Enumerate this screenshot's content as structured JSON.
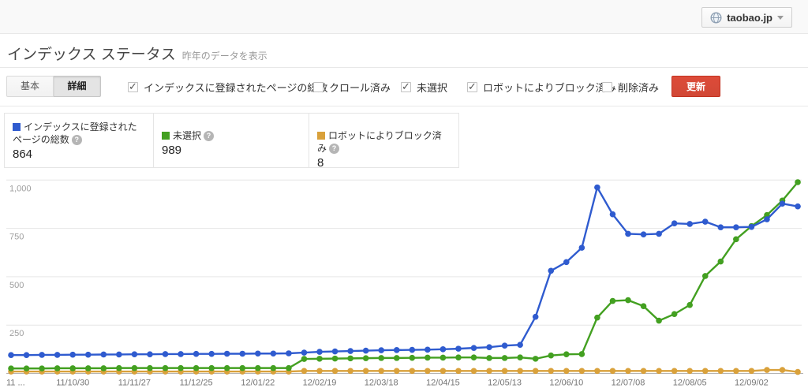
{
  "topbar": {
    "site_selector": {
      "label": "taobao.jp"
    }
  },
  "header": {
    "title": "インデックス ステータス",
    "subtitle": "昨年のデータを表示"
  },
  "toolbar": {
    "tabs": [
      {
        "label": "基本",
        "selected": false
      },
      {
        "label": "詳細",
        "selected": true
      }
    ],
    "filters": [
      {
        "label": "インデックスに登録されたページの総数",
        "checked": true
      },
      {
        "label": "クロール済み",
        "checked": false
      },
      {
        "label": "未選択",
        "checked": true
      },
      {
        "label": "ロボットによりブロック済み",
        "checked": true
      },
      {
        "label": "削除済み",
        "checked": false
      }
    ],
    "update_button": "更新"
  },
  "legend_cards": [
    {
      "label": "インデックスに登録されたページの総数",
      "value": "864",
      "color": "#2f5bcf"
    },
    {
      "label": "未選択",
      "value": "989",
      "color": "#43a021"
    },
    {
      "label": "ロボットによりブロック済み",
      "value": "8",
      "color": "#d9a13b"
    }
  ],
  "chart_data": {
    "type": "line",
    "title": "インデックス ステータス",
    "x_tick_labels": [
      "11 ...",
      "11/10/30",
      "11/11/27",
      "11/12/25",
      "12/01/22",
      "12/02/19",
      "12/03/18",
      "12/04/15",
      "12/05/13",
      "12/06/10",
      "12/07/08",
      "12/08/05",
      "12/09/02"
    ],
    "y_tick_labels": [
      "1,000",
      "750",
      "500",
      "250"
    ],
    "y_tick_values": [
      1000,
      750,
      500,
      250
    ],
    "ylim": [
      0,
      1020
    ],
    "grid": true,
    "points_per_tick": 4,
    "series": [
      {
        "name": "インデックスに登録されたページの総数",
        "color": "#2f5bcf",
        "values": [
          95,
          95,
          96,
          96,
          97,
          97,
          98,
          98,
          99,
          99,
          100,
          100,
          101,
          101,
          102,
          102,
          103,
          103,
          104,
          108,
          112,
          114,
          116,
          118,
          120,
          121,
          122,
          123,
          125,
          128,
          132,
          136,
          144,
          148,
          293,
          531,
          576,
          650,
          962,
          823,
          722,
          719,
          722,
          776,
          773,
          785,
          756,
          756,
          758,
          797,
          878,
          864
        ]
      },
      {
        "name": "未選択",
        "color": "#43a021",
        "values": [
          26,
          26,
          26,
          27,
          27,
          27,
          27,
          28,
          28,
          28,
          28,
          28,
          28,
          28,
          28,
          28,
          28,
          28,
          28,
          75,
          76,
          77,
          78,
          79,
          80,
          80,
          81,
          82,
          82,
          83,
          83,
          80,
          80,
          83,
          76,
          93,
          99,
          100,
          289,
          375,
          379,
          348,
          273,
          307,
          354,
          504,
          579,
          694,
          762,
          819,
          894,
          989
        ]
      },
      {
        "name": "ロボットによりブロック済み",
        "color": "#d9a13b",
        "values": [
          10,
          10,
          10,
          10,
          10,
          10,
          10,
          10,
          10,
          10,
          10,
          10,
          10,
          10,
          10,
          10,
          10,
          10,
          10,
          13,
          13,
          13,
          13,
          13,
          13,
          13,
          13,
          13,
          13,
          13,
          13,
          13,
          13,
          13,
          13,
          13,
          13,
          13,
          13,
          13,
          13,
          13,
          13,
          13,
          13,
          13,
          13,
          13,
          13,
          18,
          18,
          8
        ]
      }
    ]
  }
}
